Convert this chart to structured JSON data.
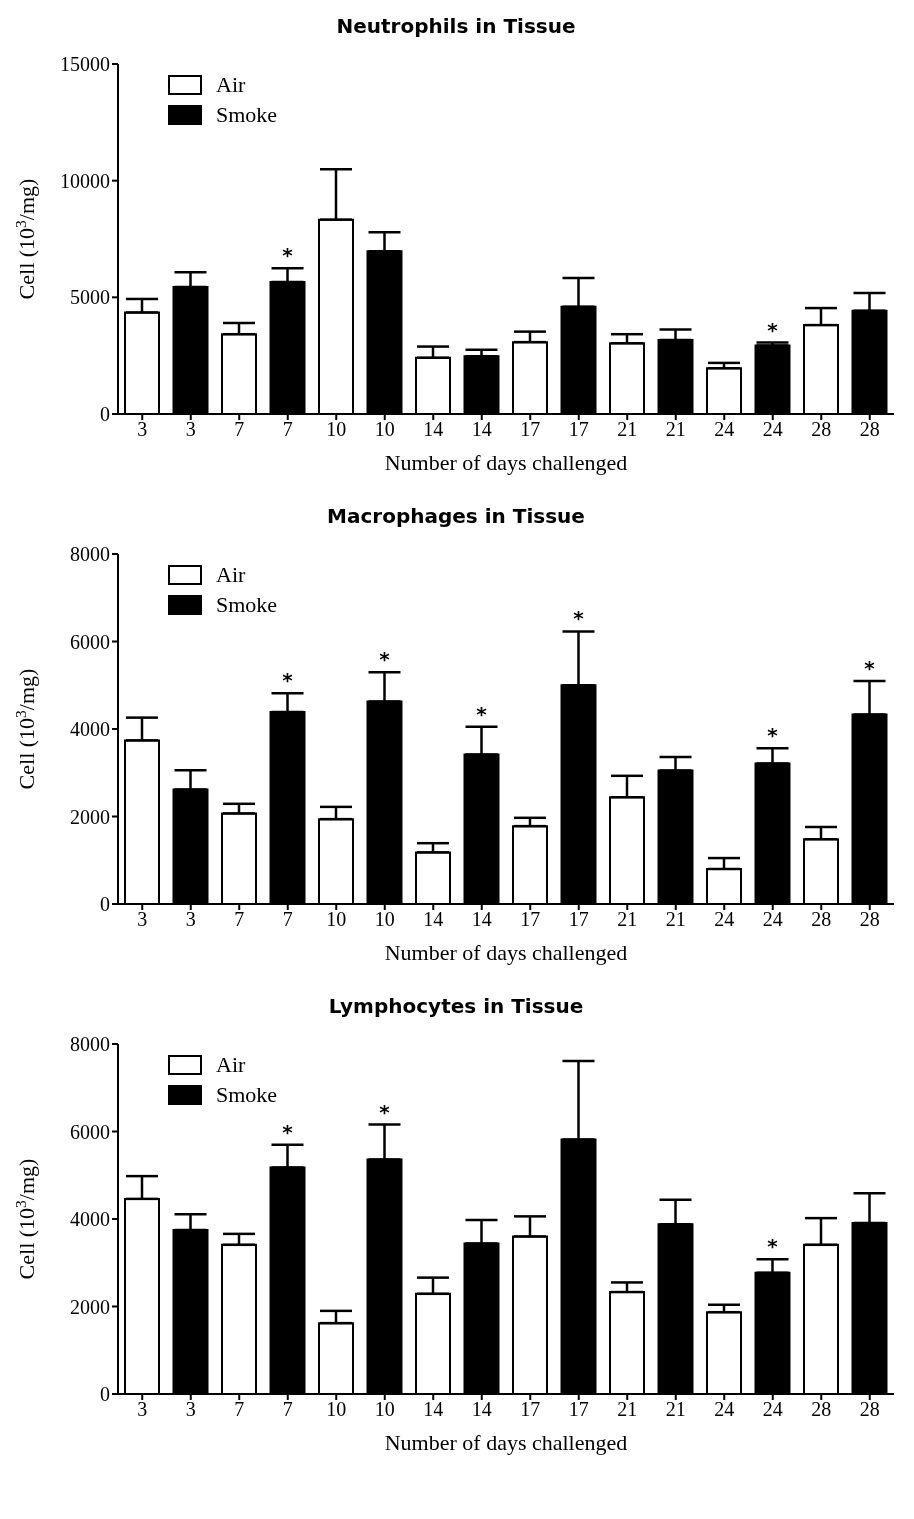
{
  "chart_data": [
    {
      "type": "bar",
      "title": "Neutrophils in Tissue",
      "xlabel": "Number of days challenged",
      "ylabel": "Cell (10$^{3}$/mg)",
      "categories": [
        "3",
        "3",
        "7",
        "7",
        "10",
        "10",
        "14",
        "14",
        "17",
        "17",
        "21",
        "21",
        "24",
        "24",
        "28",
        "28"
      ],
      "ylim": [
        0,
        15000
      ],
      "yticks": [
        0,
        5000,
        10000,
        15000
      ],
      "legend": "top left",
      "grid": false,
      "series": [
        {
          "name": "Air",
          "color": "#ffffff",
          "values": [
            4350,
            null,
            3420,
            null,
            8330,
            null,
            2410,
            null,
            3080,
            null,
            3030,
            null,
            1960,
            null,
            3810,
            null
          ],
          "errors": [
            [
              4350,
              4930
            ],
            null,
            [
              3420,
              3900
            ],
            null,
            [
              8330,
              10490
            ],
            null,
            [
              2410,
              2890
            ],
            null,
            [
              3080,
              3530
            ],
            null,
            [
              3030,
              3420
            ],
            null,
            [
              1960,
              2190
            ],
            null,
            [
              3810,
              4540
            ],
            null
          ]
        },
        {
          "name": "Smoke",
          "color": "#000000",
          "values": [
            null,
            5440,
            null,
            5660,
            null,
            6980,
            null,
            2470,
            null,
            4600,
            null,
            3170,
            null,
            2940,
            null,
            4430
          ],
          "errors": [
            null,
            [
              5440,
              6080
            ],
            null,
            [
              5660,
              6250
            ],
            null,
            [
              6980,
              7790
            ],
            null,
            [
              2470,
              2750
            ],
            null,
            [
              4600,
              5830
            ],
            null,
            [
              3170,
              3620
            ],
            null,
            [
              2940,
              3060
            ],
            null,
            [
              4430,
              5190
            ]
          ],
          "value_labels": [
            null,
            null,
            null,
            "*",
            null,
            null,
            null,
            null,
            null,
            null,
            null,
            null,
            null,
            "*",
            null,
            null
          ]
        }
      ]
    },
    {
      "type": "bar",
      "title": "Macrophages in Tissue",
      "xlabel": "Number of days challenged",
      "ylabel": "Cell (10$^{3}$/mg)",
      "categories": [
        "3",
        "3",
        "7",
        "7",
        "10",
        "10",
        "14",
        "14",
        "17",
        "17",
        "21",
        "21",
        "24",
        "24",
        "28",
        "28"
      ],
      "ylim": [
        0,
        8000
      ],
      "yticks": [
        0,
        2000,
        4000,
        6000,
        8000
      ],
      "legend": "top left",
      "grid": false,
      "series": [
        {
          "name": "Air",
          "color": "#ffffff",
          "values": [
            3740,
            null,
            2070,
            null,
            1940,
            null,
            1180,
            null,
            1780,
            null,
            2440,
            null,
            800,
            null,
            1480,
            null
          ],
          "errors": [
            [
              3740,
              4260
            ],
            null,
            [
              2070,
              2290
            ],
            null,
            [
              1940,
              2220
            ],
            null,
            [
              1180,
              1390
            ],
            null,
            [
              1780,
              1970
            ],
            null,
            [
              2440,
              2930
            ],
            null,
            [
              800,
              1050
            ],
            null,
            [
              1480,
              1760
            ],
            null
          ]
        },
        {
          "name": "Smoke",
          "color": "#000000",
          "values": [
            null,
            2620,
            null,
            4390,
            null,
            4630,
            null,
            3420,
            null,
            5000,
            null,
            3050,
            null,
            3210,
            null,
            4330
          ],
          "errors": [
            null,
            [
              2620,
              3060
            ],
            null,
            [
              4390,
              4820
            ],
            null,
            [
              4630,
              5300
            ],
            null,
            [
              3420,
              4050
            ],
            null,
            [
              5000,
              6230
            ],
            null,
            [
              3050,
              3360
            ],
            null,
            [
              3210,
              3560
            ],
            null,
            [
              4330,
              5100
            ]
          ],
          "value_labels": [
            null,
            null,
            null,
            "*",
            null,
            "*",
            null,
            "*",
            null,
            "*",
            null,
            null,
            null,
            "*",
            null,
            "*"
          ]
        }
      ]
    },
    {
      "type": "bar",
      "title": "Lymphocytes in Tissue",
      "xlabel": "Number of days challenged",
      "ylabel": "Cell (10$^{3}$/mg)",
      "categories": [
        "3",
        "3",
        "7",
        "7",
        "10",
        "10",
        "14",
        "14",
        "17",
        "17",
        "21",
        "21",
        "24",
        "24",
        "28",
        "28"
      ],
      "ylim": [
        0,
        8000
      ],
      "yticks": [
        0,
        2000,
        4000,
        6000,
        8000
      ],
      "legend": "top left",
      "grid": false,
      "series": [
        {
          "name": "Air",
          "color": "#ffffff",
          "values": [
            4460,
            null,
            3410,
            null,
            1620,
            null,
            2290,
            null,
            3600,
            null,
            2330,
            null,
            1870,
            null,
            3410,
            null
          ],
          "errors": [
            [
              4460,
              4980
            ],
            null,
            [
              3410,
              3660
            ],
            null,
            [
              1620,
              1900
            ],
            null,
            [
              2290,
              2660
            ],
            null,
            [
              3600,
              4060
            ],
            null,
            [
              2330,
              2550
            ],
            null,
            [
              1870,
              2040
            ],
            null,
            [
              3410,
              4020
            ],
            null
          ]
        },
        {
          "name": "Smoke",
          "color": "#000000",
          "values": [
            null,
            3750,
            null,
            5180,
            null,
            5360,
            null,
            3440,
            null,
            5820,
            null,
            3880,
            null,
            2770,
            null,
            3910
          ],
          "errors": [
            null,
            [
              3750,
              4110
            ],
            null,
            [
              5180,
              5700
            ],
            null,
            [
              5360,
              6160
            ],
            null,
            [
              3440,
              3980
            ],
            null,
            [
              5820,
              7610
            ],
            null,
            [
              3880,
              4440
            ],
            null,
            [
              2770,
              3080
            ],
            null,
            [
              3910,
              4590
            ]
          ],
          "value_labels": [
            null,
            null,
            null,
            "*",
            null,
            "*",
            null,
            null,
            null,
            null,
            null,
            null,
            null,
            "*",
            null,
            null
          ]
        }
      ]
    }
  ]
}
